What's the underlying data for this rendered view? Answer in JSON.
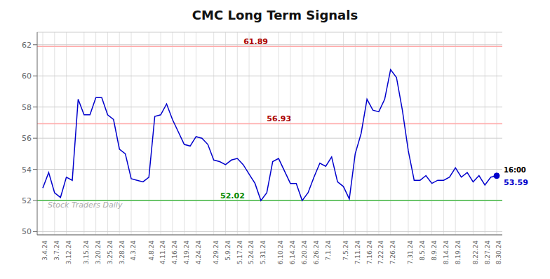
{
  "chart_data": {
    "type": "line",
    "title": "CMC Long Term Signals",
    "color": "#0000cc",
    "grid": true,
    "grid_color": "#cccccc",
    "ylim": [
      49.8,
      62.8
    ],
    "yticks": [
      50,
      52,
      54,
      56,
      58,
      60,
      62
    ],
    "categories": [
      "3.4.24",
      null,
      "3.7.24",
      null,
      "3.12.24",
      null,
      null,
      "3.15.24",
      null,
      "3.20.24",
      null,
      "3.25.24",
      null,
      "3.28.24",
      null,
      "4.3.24",
      null,
      null,
      "4.8.24",
      null,
      "4.11.24",
      null,
      "4.16.24",
      null,
      "4.19.24",
      null,
      "4.24.24",
      null,
      null,
      "4.29.24",
      null,
      "5.9.24",
      null,
      "5.17.24",
      null,
      "5.24.24",
      null,
      "5.31.24",
      null,
      null,
      "6.10.24",
      null,
      "6.14.24",
      null,
      "6.20.24",
      null,
      "6.26.24",
      null,
      "7.1.24",
      null,
      null,
      "7.5.24",
      null,
      "7.11.24",
      null,
      "7.16.24",
      null,
      "7.22.24",
      null,
      "7.26.24",
      null,
      null,
      "7.31.24",
      null,
      "8.5.24",
      null,
      "8.9.24",
      null,
      "8.14.24",
      null,
      "8.19.24",
      null,
      null,
      "8.22.24",
      null,
      "8.27.24",
      null,
      "8.30.24"
    ],
    "values": [
      52.8,
      53.8,
      52.5,
      52.2,
      53.5,
      53.3,
      58.5,
      57.5,
      57.5,
      58.6,
      58.6,
      57.5,
      57.2,
      55.3,
      55.0,
      53.4,
      53.3,
      53.2,
      53.5,
      57.4,
      57.5,
      58.2,
      57.2,
      56.4,
      55.6,
      55.5,
      56.1,
      56.0,
      55.6,
      54.6,
      54.5,
      54.3,
      54.6,
      54.7,
      54.3,
      53.7,
      53.1,
      52.0,
      52.5,
      54.5,
      54.7,
      53.9,
      53.1,
      53.1,
      52.0,
      52.5,
      53.5,
      54.4,
      54.2,
      54.8,
      53.2,
      52.9,
      52.1,
      55.0,
      56.3,
      58.5,
      57.8,
      57.7,
      58.5,
      60.4,
      59.9,
      57.8,
      55.2,
      53.3,
      53.3,
      53.6,
      53.1,
      53.3,
      53.3,
      53.5,
      54.1,
      53.5,
      53.8,
      53.2,
      53.6,
      53.0,
      53.5,
      53.59
    ],
    "hlines": [
      {
        "value": 61.89,
        "label": "61.89",
        "color": "#ffaaaa",
        "label_color": "#aa0000"
      },
      {
        "value": 56.93,
        "label": "56.93",
        "color": "#ffaaaa",
        "label_color": "#aa0000"
      },
      {
        "value": 52.02,
        "label": "52.02",
        "color": "#44bb44",
        "label_color": "#008800"
      }
    ],
    "last_point": {
      "value": 53.59,
      "label": "53.59",
      "time_label": "16:00",
      "label_color": "#0000cc",
      "time_label_color": "#000000"
    },
    "watermark": "Stock Traders Daily"
  }
}
